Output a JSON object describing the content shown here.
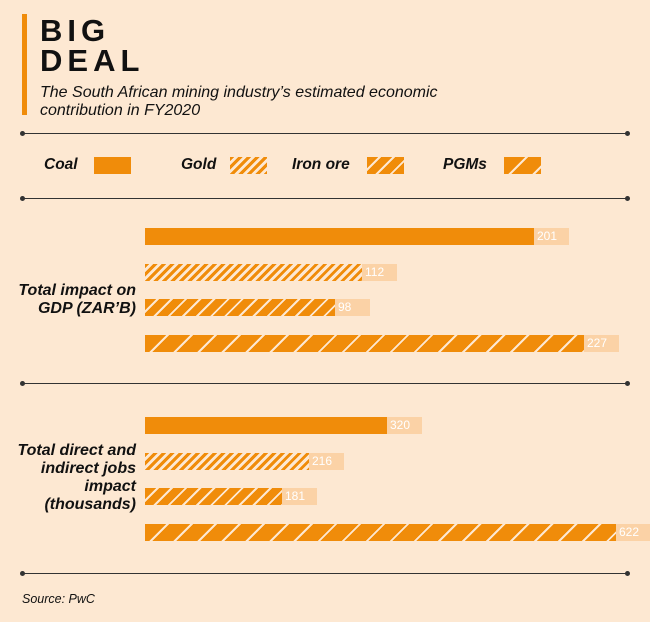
{
  "header": {
    "title_line1": "BIG",
    "title_line2": "DEAL",
    "subtitle": "The South African mining industry’s estimated economic contribution in FY2020"
  },
  "source": "Source: PwC",
  "colors": {
    "background": "#fde8d2",
    "accent": "#f08c0a",
    "value_box": "#fbd2a6"
  },
  "chart_data": {
    "type": "bar",
    "orientation": "horizontal",
    "legend_position": "top",
    "series": [
      {
        "name": "Coal",
        "pattern": "solid"
      },
      {
        "name": "Gold",
        "pattern": "fine-hatch"
      },
      {
        "name": "Iron ore",
        "pattern": "medium-hatch"
      },
      {
        "name": "PGMs",
        "pattern": "wide-hatch"
      }
    ],
    "groups": [
      {
        "label": "Total impact on GDP (ZAR’B)",
        "values": [
          201,
          112,
          98,
          227
        ]
      },
      {
        "label": "Total direct and indirect jobs impact (thousands)",
        "values": [
          320,
          216,
          181,
          622
        ]
      }
    ]
  }
}
